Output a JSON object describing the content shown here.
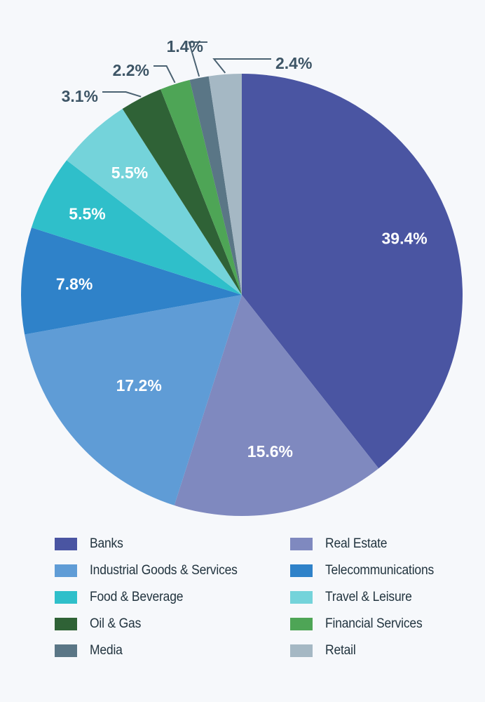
{
  "chart_data": {
    "type": "pie",
    "title": "",
    "start": "top, clockwise",
    "slices": [
      {
        "label": "Banks",
        "value": 39.4,
        "color": "#4a55a2",
        "label_style": "inside"
      },
      {
        "label": "Real Estate",
        "value": 15.6,
        "color": "#7f89bf",
        "label_style": "inside"
      },
      {
        "label": "Industrial Goods & Services",
        "value": 17.2,
        "color": "#5f9cd6",
        "label_style": "inside"
      },
      {
        "label": "Telecommunications",
        "value": 7.8,
        "color": "#2f82c9",
        "label_style": "inside"
      },
      {
        "label": "Food & Beverage",
        "value": 5.5,
        "color": "#2fbfca",
        "label_style": "inside"
      },
      {
        "label": "Travel & Leisure",
        "value": 5.5,
        "color": "#74d3da",
        "label_style": "inside"
      },
      {
        "label": "Oil & Gas",
        "value": 3.1,
        "color": "#2f6236",
        "label_style": "outside"
      },
      {
        "label": "Financial Services",
        "value": 2.2,
        "color": "#4ea556",
        "label_style": "outside"
      },
      {
        "label": "Media",
        "value": 1.4,
        "color": "#5a7686",
        "label_style": "outside"
      },
      {
        "label": "Retail",
        "value": 2.4,
        "color": "#a5b8c4",
        "label_style": "outside"
      }
    ],
    "value_labels": [
      "39.4%",
      "15.6%",
      "17.2%",
      "7.8%",
      "5.5%",
      "5.5%",
      "3.1%",
      "2.2%",
      "1.4%",
      "2.4%"
    ],
    "legend": {
      "placement": "bottom",
      "items": [
        {
          "label": "Banks",
          "color": "#4a55a2"
        },
        {
          "label": "Real Estate",
          "color": "#7f89bf"
        },
        {
          "label": "Industrial Goods & Services",
          "color": "#5f9cd6"
        },
        {
          "label": "Telecommunications",
          "color": "#2f82c9"
        },
        {
          "label": "Food & Beverage",
          "color": "#2fbfca"
        },
        {
          "label": "Travel & Leisure",
          "color": "#74d3da"
        },
        {
          "label": "Oil & Gas",
          "color": "#2f6236"
        },
        {
          "label": "Financial Services",
          "color": "#4ea556"
        },
        {
          "label": "Media",
          "color": "#5a7686"
        },
        {
          "label": "Retail",
          "color": "#a5b8c4"
        }
      ]
    },
    "inside_label_color": "#ffffff",
    "outside_label_color": "#3d5566"
  }
}
